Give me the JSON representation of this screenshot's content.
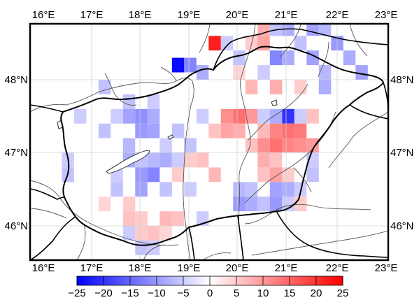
{
  "map": {
    "lon_labels": [
      "16°E",
      "17°E",
      "18°E",
      "19°E",
      "20°E",
      "21°E",
      "22°E",
      "23°E"
    ],
    "lat_labels": [
      "48°N",
      "47°N",
      "46°N"
    ]
  },
  "colorbar": {
    "ticks": [
      "−25",
      "−20",
      "−15",
      "−10",
      "−5",
      "0",
      "5",
      "10",
      "15",
      "20",
      "25"
    ],
    "min": -25,
    "max": 25,
    "low_color": "#0000ff",
    "mid_color": "#ffffff",
    "high_color": "#ff0000"
  },
  "chart_data": {
    "type": "heatmap",
    "lon_range": [
      16,
      23
    ],
    "lat_range": [
      45.5,
      48.9
    ],
    "grid_on": true,
    "value_range": [
      -25,
      25
    ],
    "cell_size_deg": [
      0.25,
      0.2
    ],
    "cells": [
      {
        "lon": 18.75,
        "lat": 48.2,
        "v": -24
      },
      {
        "lon": 19.0,
        "lat": 48.2,
        "v": -12
      },
      {
        "lon": 19.5,
        "lat": 48.5,
        "v": 22
      },
      {
        "lon": 19.75,
        "lat": 48.5,
        "v": -5
      },
      {
        "lon": 20.5,
        "lat": 48.7,
        "v": 8
      },
      {
        "lon": 20.75,
        "lat": 48.7,
        "v": -6
      },
      {
        "lon": 21.0,
        "lat": 48.7,
        "v": -8
      },
      {
        "lon": 21.5,
        "lat": 48.7,
        "v": -9
      },
      {
        "lon": 21.75,
        "lat": 48.7,
        "v": -7
      },
      {
        "lon": 20.25,
        "lat": 48.5,
        "v": 5
      },
      {
        "lon": 20.5,
        "lat": 48.5,
        "v": 9
      },
      {
        "lon": 21.25,
        "lat": 48.5,
        "v": -6
      },
      {
        "lon": 22.0,
        "lat": 48.5,
        "v": -10
      },
      {
        "lon": 20.0,
        "lat": 48.3,
        "v": -6
      },
      {
        "lon": 20.75,
        "lat": 48.3,
        "v": -12
      },
      {
        "lon": 21.0,
        "lat": 48.3,
        "v": -8
      },
      {
        "lon": 21.5,
        "lat": 48.3,
        "v": -9
      },
      {
        "lon": 22.25,
        "lat": 48.3,
        "v": -8
      },
      {
        "lon": 19.25,
        "lat": 48.1,
        "v": -8
      },
      {
        "lon": 20.0,
        "lat": 48.1,
        "v": 4
      },
      {
        "lon": 20.5,
        "lat": 48.1,
        "v": -5
      },
      {
        "lon": 21.75,
        "lat": 48.1,
        "v": -7
      },
      {
        "lon": 22.5,
        "lat": 48.1,
        "v": -9
      },
      {
        "lon": 20.25,
        "lat": 47.9,
        "v": 7
      },
      {
        "lon": 20.75,
        "lat": 47.9,
        "v": 8
      },
      {
        "lon": 21.25,
        "lat": 47.9,
        "v": 5
      },
      {
        "lon": 21.75,
        "lat": 47.9,
        "v": -8
      },
      {
        "lon": 17.25,
        "lat": 47.9,
        "v": -6
      },
      {
        "lon": 17.75,
        "lat": 47.7,
        "v": -6
      },
      {
        "lon": 18.25,
        "lat": 47.7,
        "v": -5
      },
      {
        "lon": 16.75,
        "lat": 47.5,
        "v": -5
      },
      {
        "lon": 17.5,
        "lat": 47.5,
        "v": -5
      },
      {
        "lon": 17.75,
        "lat": 47.5,
        "v": -9
      },
      {
        "lon": 18.0,
        "lat": 47.5,
        "v": -11
      },
      {
        "lon": 18.25,
        "lat": 47.5,
        "v": -8
      },
      {
        "lon": 19.25,
        "lat": 47.5,
        "v": -5
      },
      {
        "lon": 19.75,
        "lat": 47.5,
        "v": 11
      },
      {
        "lon": 20.0,
        "lat": 47.5,
        "v": 14
      },
      {
        "lon": 20.25,
        "lat": 47.5,
        "v": 10
      },
      {
        "lon": 20.5,
        "lat": 47.5,
        "v": -5
      },
      {
        "lon": 20.75,
        "lat": 47.5,
        "v": -8
      },
      {
        "lon": 21.0,
        "lat": 47.5,
        "v": -20
      },
      {
        "lon": 21.25,
        "lat": 47.5,
        "v": -5
      },
      {
        "lon": 21.5,
        "lat": 47.5,
        "v": 6
      },
      {
        "lon": 18.75,
        "lat": 47.3,
        "v": -6
      },
      {
        "lon": 19.5,
        "lat": 47.3,
        "v": 6
      },
      {
        "lon": 19.75,
        "lat": 47.3,
        "v": 9
      },
      {
        "lon": 20.0,
        "lat": 47.3,
        "v": 8
      },
      {
        "lon": 20.5,
        "lat": 47.3,
        "v": 7
      },
      {
        "lon": 20.75,
        "lat": 47.3,
        "v": 12
      },
      {
        "lon": 21.0,
        "lat": 47.3,
        "v": 14
      },
      {
        "lon": 21.25,
        "lat": 47.3,
        "v": 13
      },
      {
        "lon": 17.25,
        "lat": 47.3,
        "v": -6
      },
      {
        "lon": 18.0,
        "lat": 47.3,
        "v": -10
      },
      {
        "lon": 18.25,
        "lat": 47.3,
        "v": -9
      },
      {
        "lon": 17.75,
        "lat": 47.1,
        "v": -7
      },
      {
        "lon": 18.5,
        "lat": 47.1,
        "v": -5
      },
      {
        "lon": 19.0,
        "lat": 47.1,
        "v": -6
      },
      {
        "lon": 20.25,
        "lat": 47.1,
        "v": 6
      },
      {
        "lon": 20.5,
        "lat": 47.1,
        "v": 11
      },
      {
        "lon": 20.75,
        "lat": 47.1,
        "v": 14
      },
      {
        "lon": 21.0,
        "lat": 47.1,
        "v": 12
      },
      {
        "lon": 21.25,
        "lat": 47.1,
        "v": 11
      },
      {
        "lon": 21.5,
        "lat": 47.1,
        "v": 10
      },
      {
        "lon": 16.5,
        "lat": 46.9,
        "v": -5
      },
      {
        "lon": 17.75,
        "lat": 46.9,
        "v": -8
      },
      {
        "lon": 18.0,
        "lat": 46.9,
        "v": -6
      },
      {
        "lon": 18.25,
        "lat": 46.9,
        "v": -7
      },
      {
        "lon": 18.5,
        "lat": 46.9,
        "v": -8
      },
      {
        "lon": 18.75,
        "lat": 46.9,
        "v": -5
      },
      {
        "lon": 19.0,
        "lat": 46.9,
        "v": 5
      },
      {
        "lon": 19.25,
        "lat": 46.9,
        "v": 6
      },
      {
        "lon": 20.5,
        "lat": 46.9,
        "v": 8
      },
      {
        "lon": 20.75,
        "lat": 46.9,
        "v": 6
      },
      {
        "lon": 21.5,
        "lat": 46.9,
        "v": -5
      },
      {
        "lon": 16.5,
        "lat": 46.7,
        "v": -6
      },
      {
        "lon": 17.5,
        "lat": 46.7,
        "v": -5
      },
      {
        "lon": 18.0,
        "lat": 46.7,
        "v": -10
      },
      {
        "lon": 18.25,
        "lat": 46.7,
        "v": -12
      },
      {
        "lon": 18.75,
        "lat": 46.7,
        "v": 5
      },
      {
        "lon": 19.5,
        "lat": 46.7,
        "v": 7
      },
      {
        "lon": 20.5,
        "lat": 46.7,
        "v": 6
      },
      {
        "lon": 20.75,
        "lat": 46.7,
        "v": 9
      },
      {
        "lon": 21.0,
        "lat": 46.7,
        "v": 5
      },
      {
        "lon": 21.5,
        "lat": 46.7,
        "v": -6
      },
      {
        "lon": 17.5,
        "lat": 46.5,
        "v": -6
      },
      {
        "lon": 18.0,
        "lat": 46.5,
        "v": -9
      },
      {
        "lon": 18.5,
        "lat": 46.5,
        "v": -6
      },
      {
        "lon": 19.0,
        "lat": 46.5,
        "v": -5
      },
      {
        "lon": 20.0,
        "lat": 46.5,
        "v": -7
      },
      {
        "lon": 20.25,
        "lat": 46.5,
        "v": -6
      },
      {
        "lon": 20.75,
        "lat": 46.5,
        "v": -9
      },
      {
        "lon": 21.0,
        "lat": 46.5,
        "v": -8
      },
      {
        "lon": 21.25,
        "lat": 46.5,
        "v": -5
      },
      {
        "lon": 17.25,
        "lat": 46.3,
        "v": 4
      },
      {
        "lon": 17.75,
        "lat": 46.3,
        "v": 5
      },
      {
        "lon": 20.0,
        "lat": 46.3,
        "v": -10
      },
      {
        "lon": 20.25,
        "lat": 46.3,
        "v": -8
      },
      {
        "lon": 20.5,
        "lat": 46.3,
        "v": -6
      },
      {
        "lon": 20.75,
        "lat": 46.3,
        "v": -10
      },
      {
        "lon": 21.0,
        "lat": 46.3,
        "v": -5
      },
      {
        "lon": 21.25,
        "lat": 46.3,
        "v": 5
      },
      {
        "lon": 17.75,
        "lat": 46.1,
        "v": 6
      },
      {
        "lon": 18.0,
        "lat": 46.1,
        "v": 5
      },
      {
        "lon": 18.5,
        "lat": 46.1,
        "v": 7
      },
      {
        "lon": 18.75,
        "lat": 46.1,
        "v": 6
      },
      {
        "lon": 19.25,
        "lat": 46.1,
        "v": -5
      },
      {
        "lon": 17.75,
        "lat": 45.9,
        "v": -5
      },
      {
        "lon": 18.0,
        "lat": 45.9,
        "v": 5
      },
      {
        "lon": 18.25,
        "lat": 45.9,
        "v": 6
      },
      {
        "lon": 18.5,
        "lat": 45.9,
        "v": 4
      },
      {
        "lon": 18.0,
        "lat": 45.7,
        "v": -6
      },
      {
        "lon": 18.25,
        "lat": 45.7,
        "v": -5
      }
    ]
  }
}
